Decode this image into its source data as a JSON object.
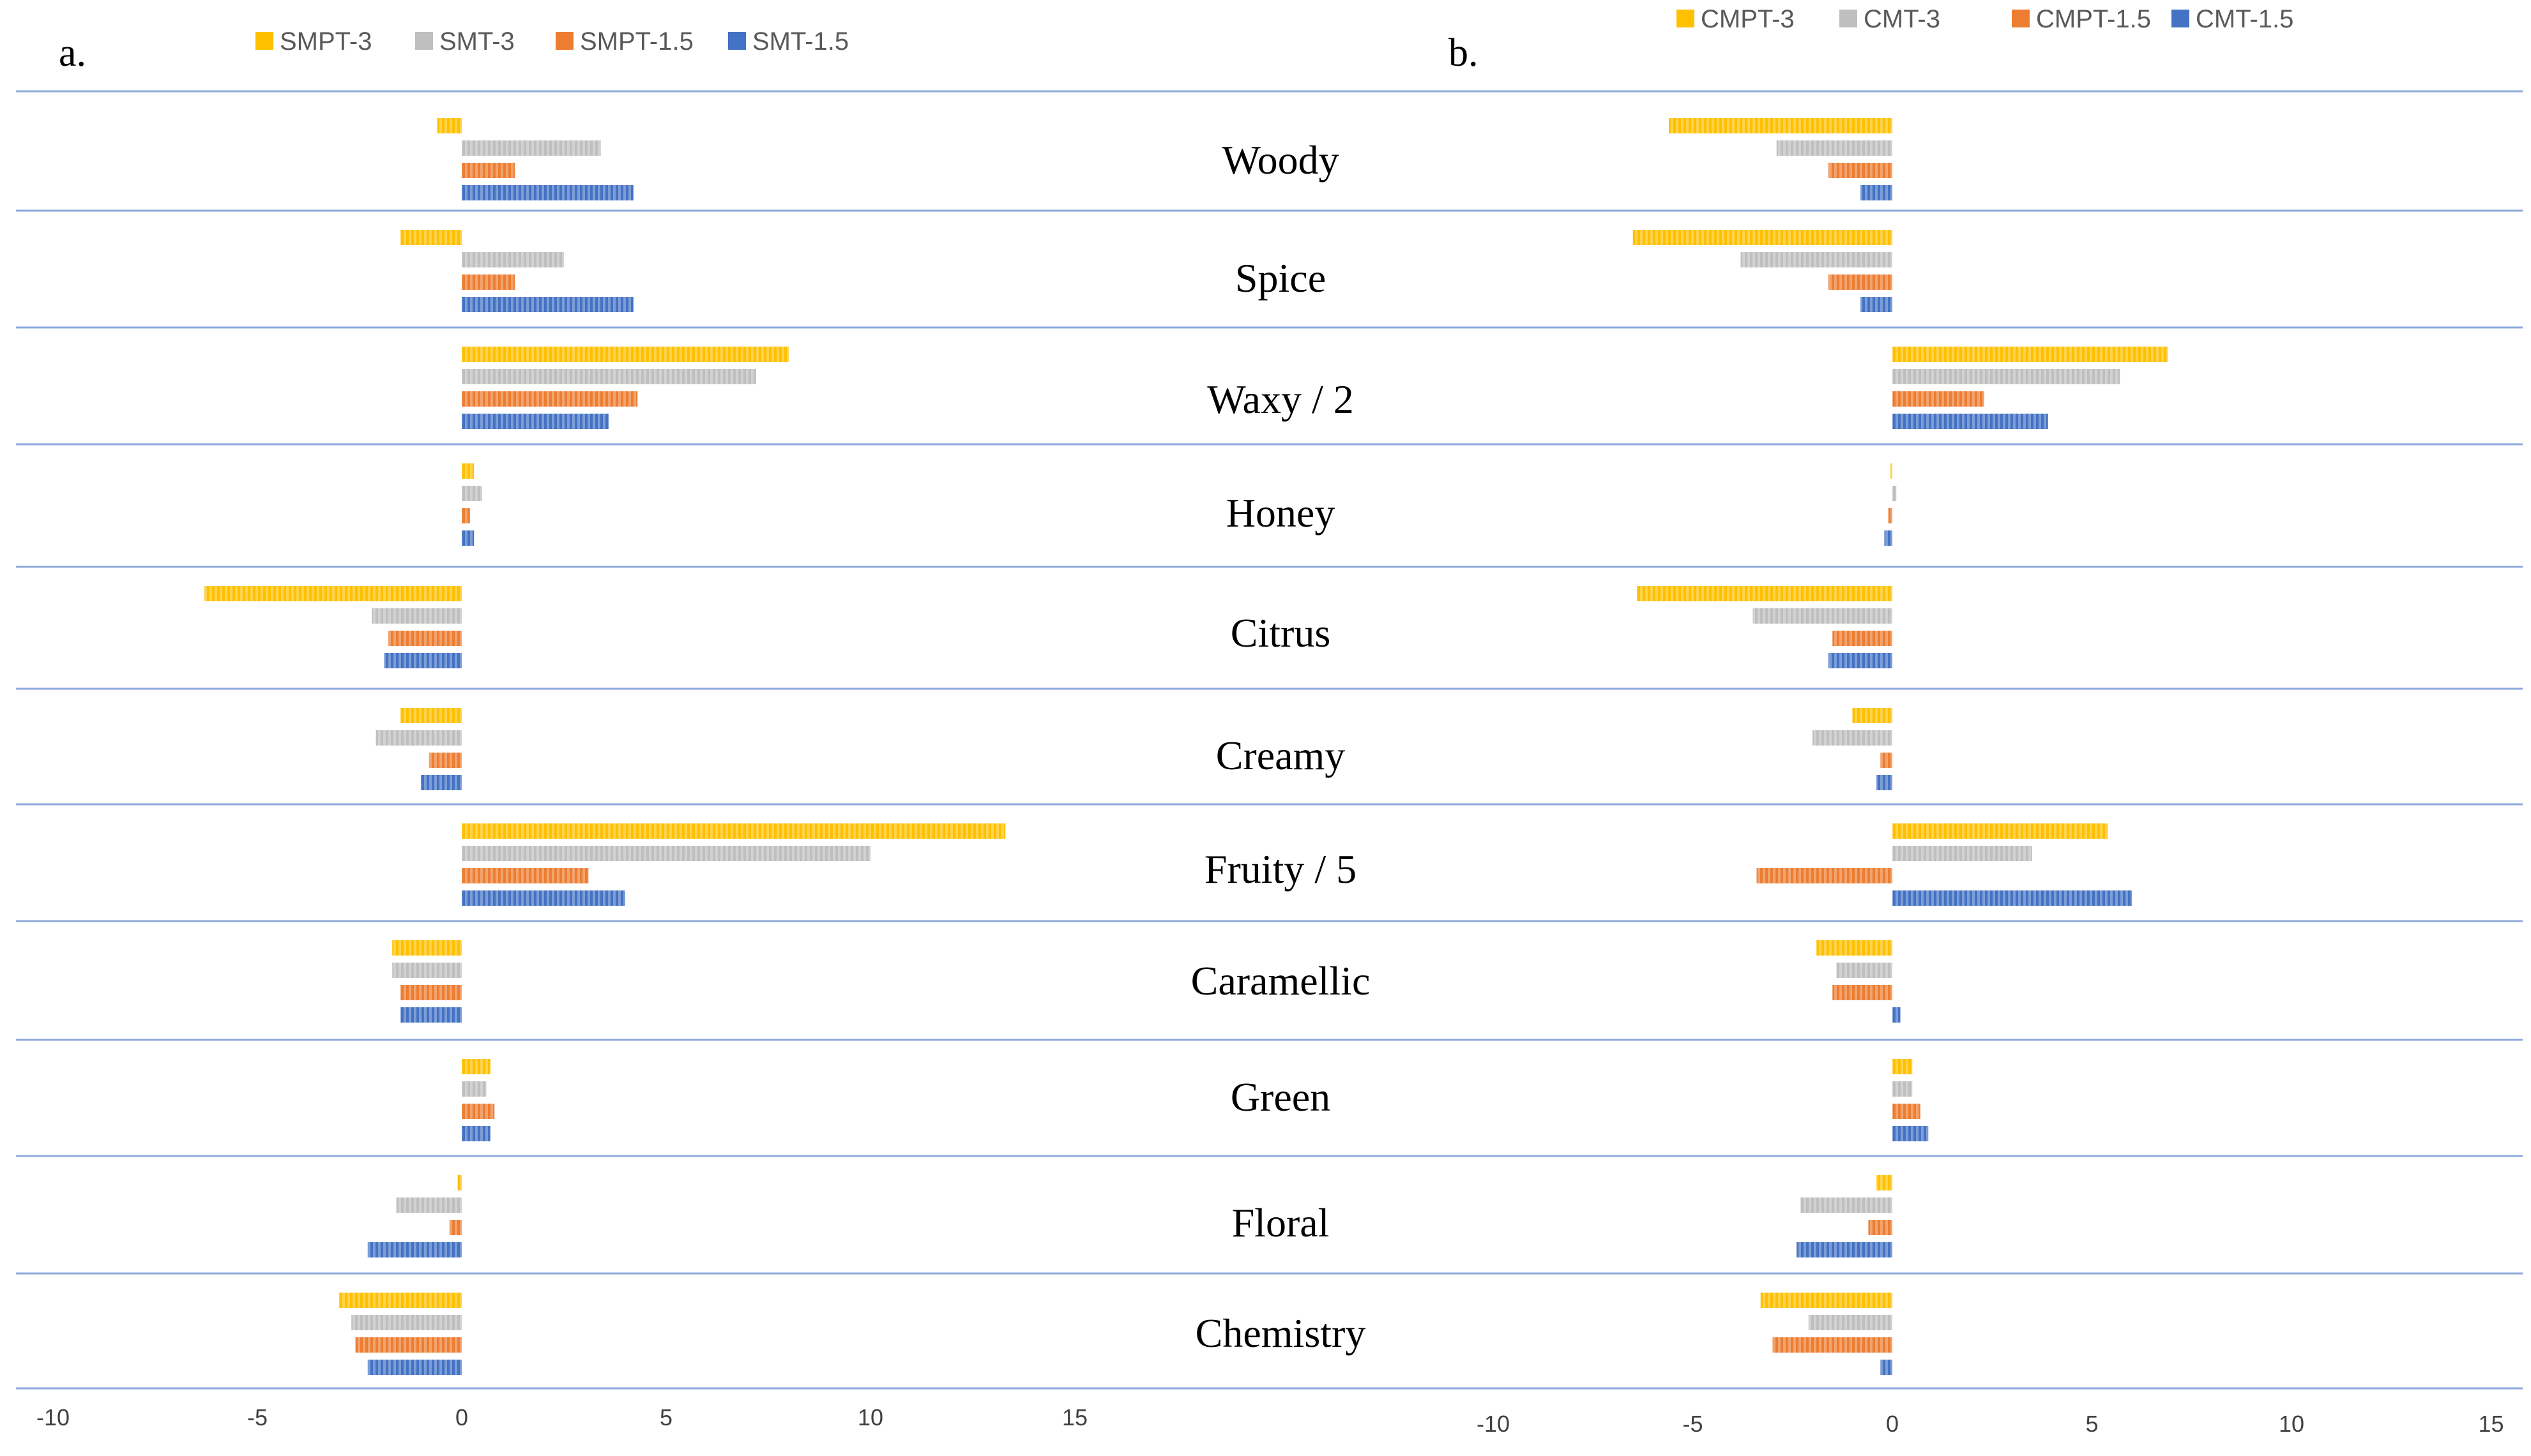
{
  "chart_data": [
    {
      "type": "bar",
      "orientation": "horizontal",
      "panel_label": "a.",
      "categories": [
        "Woody",
        "Spice",
        "Waxy / 2",
        "Honey",
        "Citrus",
        "Creamy",
        "Fruity / 5",
        "Caramellic",
        "Green",
        "Floral",
        "Chemistry"
      ],
      "series": [
        {
          "name": "SMPT-3",
          "values": [
            -0.6,
            -1.5,
            8.0,
            0.3,
            -6.3,
            -1.5,
            13.3,
            -1.7,
            0.7,
            -0.1,
            -3.0
          ]
        },
        {
          "name": "SMT-3",
          "values": [
            3.4,
            2.5,
            7.2,
            0.5,
            -2.2,
            -2.1,
            10.0,
            -1.7,
            0.6,
            -1.6,
            -2.7
          ]
        },
        {
          "name": "SMPT-1.5",
          "values": [
            1.3,
            1.3,
            4.3,
            0.2,
            -1.8,
            -0.8,
            3.1,
            -1.5,
            0.8,
            -0.3,
            -2.6
          ]
        },
        {
          "name": "SMT-1.5",
          "values": [
            4.2,
            4.2,
            3.6,
            0.3,
            -1.9,
            -1.0,
            4.0,
            -1.5,
            0.7,
            -2.3,
            -2.3
          ]
        }
      ],
      "xlim": [
        -10,
        15
      ],
      "xticks": [
        "-10",
        "-5",
        "0",
        "5",
        "10",
        "15"
      ],
      "legend_position": "top"
    },
    {
      "type": "bar",
      "orientation": "horizontal",
      "panel_label": "b.",
      "categories": [
        "Woody",
        "Spice",
        "Waxy / 2",
        "Honey",
        "Citrus",
        "Creamy",
        "Fruity / 5",
        "Caramellic",
        "Green",
        "Floral",
        "Chemistry"
      ],
      "series": [
        {
          "name": "CMPT-3",
          "values": [
            -5.6,
            -6.5,
            6.9,
            -0.05,
            -6.4,
            -1.0,
            5.4,
            -1.9,
            0.5,
            -0.4,
            -3.3
          ]
        },
        {
          "name": "CMT-3",
          "values": [
            -2.9,
            -3.8,
            5.7,
            0.1,
            -3.5,
            -2.0,
            3.5,
            -1.4,
            0.5,
            -2.3,
            -2.1
          ]
        },
        {
          "name": "CMPT-1.5",
          "values": [
            -1.6,
            -1.6,
            2.3,
            -0.1,
            -1.5,
            -0.3,
            -3.4,
            -1.5,
            0.7,
            -0.6,
            -3.0
          ]
        },
        {
          "name": "CMT-1.5",
          "values": [
            -0.8,
            -0.8,
            3.9,
            -0.2,
            -1.6,
            -0.4,
            6.0,
            0.2,
            0.9,
            -2.4,
            -0.3
          ]
        }
      ],
      "xlim": [
        -10,
        15
      ],
      "xticks": [
        "-10",
        "-5",
        "0",
        "5",
        "10",
        "15"
      ],
      "legend_position": "top"
    }
  ],
  "colors": {
    "series": [
      "#FFC000",
      "#BFBFBF",
      "#ED7D31",
      "#4472C4"
    ],
    "separator": "#8EA9DB"
  }
}
